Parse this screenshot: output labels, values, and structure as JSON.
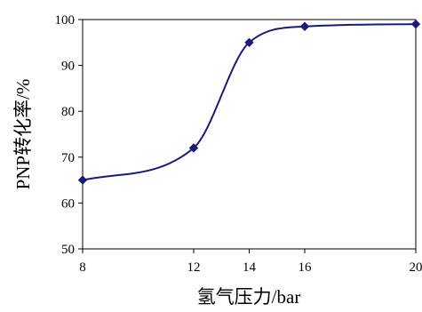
{
  "chart_data": {
    "type": "line",
    "xlabel": "氢气压力/bar",
    "ylabel": "PNP转化率/%",
    "x_ticks": [
      8,
      12,
      14,
      16,
      20
    ],
    "y_ticks": [
      50,
      60,
      70,
      80,
      90,
      100
    ],
    "xlim": [
      8,
      20
    ],
    "ylim": [
      50,
      100
    ],
    "grid": false,
    "series": [
      {
        "points": [
          {
            "x": 8,
            "y": 65
          },
          {
            "x": 12,
            "y": 72
          },
          {
            "x": 14,
            "y": 95
          },
          {
            "x": 16,
            "y": 98.5
          },
          {
            "x": 20,
            "y": 99
          }
        ],
        "color": "#1a1a7a"
      }
    ]
  }
}
